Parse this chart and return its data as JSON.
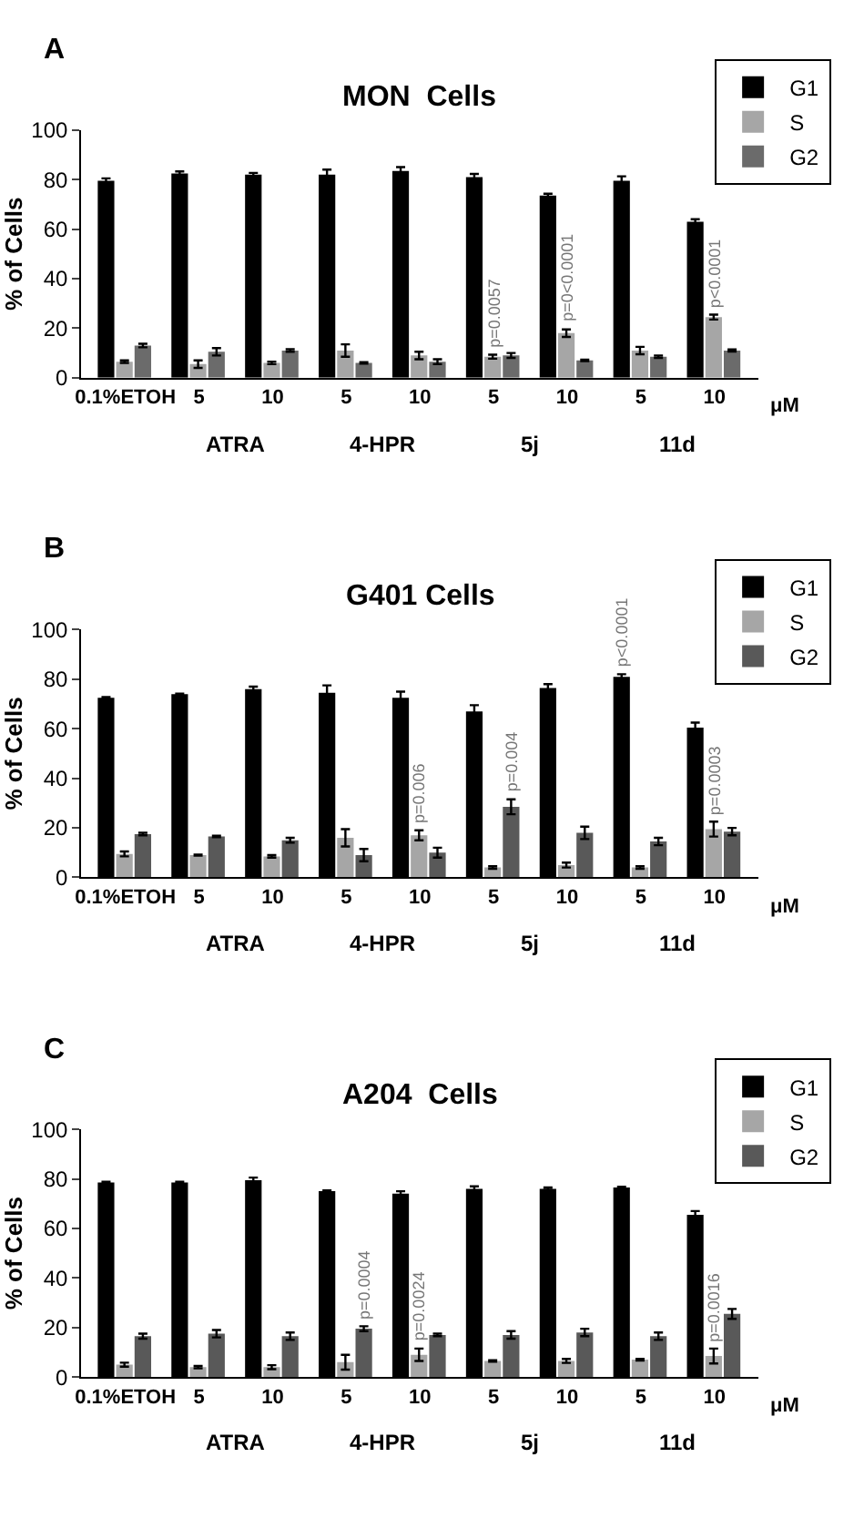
{
  "chart_data": [
    {
      "type": "bar",
      "title": "MON  Cells",
      "ylabel": "% of Cells",
      "categories": [
        "0.1%ETOH",
        "5",
        "10",
        "5",
        "10",
        "5",
        "10",
        "5",
        "10"
      ],
      "ylim": [
        0,
        100
      ],
      "yticks": [
        0,
        20,
        40,
        60,
        80,
        100
      ],
      "legend": "top right",
      "annotations": [
        "A",
        "ATRA",
        "4-HPR",
        "5j",
        "11d",
        "μM",
        "p=0.0057",
        "p=0<0.0001",
        "p<0.0001"
      ],
      "series": [
        {
          "name": "G1",
          "color": "#000000",
          "values": [
            79.5,
            82.5,
            82,
            82,
            83.5,
            81,
            73.5,
            79.5,
            63
          ],
          "errors": [
            1,
            0.8,
            0.7,
            2,
            1.5,
            1.3,
            0.8,
            1.8,
            1
          ],
          "value_labels": [
            null,
            null,
            null,
            null,
            null,
            null,
            null,
            null,
            null
          ]
        },
        {
          "name": "S",
          "color": "#a6a6a6",
          "values": [
            6.5,
            5.5,
            6,
            11,
            9,
            8.5,
            18,
            11,
            24.5
          ],
          "errors": [
            0.5,
            1.5,
            0.5,
            2.5,
            1.5,
            0.8,
            1.5,
            1.5,
            1
          ],
          "value_labels": [
            null,
            null,
            null,
            null,
            null,
            null,
            null,
            null,
            null
          ]
        },
        {
          "name": "G2",
          "color": "#6b6b6b",
          "values": [
            13,
            10.5,
            11,
            6,
            6.5,
            9,
            7,
            8.5,
            11
          ],
          "errors": [
            0.7,
            1.5,
            0.5,
            0.3,
            1,
            1,
            0.3,
            0.5,
            0.4
          ],
          "value_labels": [
            null,
            null,
            null,
            null,
            null,
            null,
            null,
            null,
            null
          ]
        }
      ]
    },
    {
      "type": "bar",
      "title": "G401 Cells",
      "ylabel": "% of Cells",
      "categories": [
        "0.1%ETOH",
        "5",
        "10",
        "5",
        "10",
        "5",
        "10",
        "5",
        "10"
      ],
      "ylim": [
        0,
        100
      ],
      "yticks": [
        0,
        20,
        40,
        60,
        80,
        100
      ],
      "legend": "top right",
      "annotations": [
        "B",
        "ATRA",
        "4-HPR",
        "5j",
        "11d",
        "μM",
        "p=0.006",
        "p=0.004",
        "p<0.0001",
        "p=0.0003"
      ],
      "series": [
        {
          "name": "G1",
          "color": "#000000",
          "values": [
            72.5,
            74,
            76,
            74.5,
            72.5,
            67,
            76.5,
            81,
            60.5
          ],
          "errors": [
            0.3,
            0.2,
            1,
            3,
            2.5,
            2.5,
            1.5,
            1,
            2
          ],
          "value_labels": [
            null,
            null,
            null,
            null,
            null,
            null,
            null,
            null,
            null
          ]
        },
        {
          "name": "S",
          "color": "#a6a6a6",
          "values": [
            9.5,
            9,
            8.5,
            16,
            17,
            4,
            5,
            4,
            19.5
          ],
          "errors": [
            1,
            0.2,
            0.5,
            3.5,
            2,
            0.5,
            1,
            0.5,
            3
          ],
          "value_labels": [
            null,
            null,
            null,
            null,
            null,
            null,
            null,
            null,
            null
          ]
        },
        {
          "name": "G2",
          "color": "#595959",
          "values": [
            17.5,
            16.5,
            15,
            9,
            10,
            28.5,
            18,
            14.5,
            18.5
          ],
          "errors": [
            0.5,
            0.3,
            1,
            2.5,
            2,
            3,
            2.5,
            1.5,
            1.5
          ],
          "value_labels": [
            null,
            null,
            null,
            null,
            null,
            null,
            null,
            null,
            null
          ]
        }
      ]
    },
    {
      "type": "bar",
      "title": "A204  Cells",
      "ylabel": "% of Cells",
      "categories": [
        "0.1%ETOH",
        "5",
        "10",
        "5",
        "10",
        "5",
        "10",
        "5",
        "10"
      ],
      "ylim": [
        0,
        100
      ],
      "yticks": [
        0,
        20,
        40,
        60,
        80,
        100
      ],
      "legend": "top right",
      "annotations": [
        "C",
        "ATRA",
        "4-HPR",
        "5j",
        "11d",
        "μM",
        "p=0.0004",
        "p=0.0024",
        "p=0.0016"
      ],
      "series": [
        {
          "name": "G1",
          "color": "#000000",
          "values": [
            78.5,
            78.5,
            79.5,
            75,
            74,
            76,
            76,
            76.5,
            65.5
          ],
          "errors": [
            0.3,
            0.3,
            1,
            0.3,
            1,
            1,
            0.5,
            0.3,
            1.5
          ],
          "value_labels": [
            null,
            null,
            null,
            null,
            null,
            null,
            null,
            null,
            null
          ]
        },
        {
          "name": "S",
          "color": "#a6a6a6",
          "values": [
            5,
            4,
            4,
            6,
            9,
            6.5,
            6.5,
            7,
            8.5
          ],
          "errors": [
            0.8,
            0.5,
            0.8,
            3,
            2.5,
            0.3,
            0.8,
            0.3,
            3
          ],
          "value_labels": [
            null,
            null,
            null,
            null,
            null,
            null,
            null,
            null,
            null
          ]
        },
        {
          "name": "G2",
          "color": "#595959",
          "values": [
            16.5,
            17.5,
            16.5,
            19.5,
            17,
            17,
            18,
            16.5,
            25.5
          ],
          "errors": [
            1,
            1.5,
            1.5,
            1,
            0.5,
            1.5,
            1.5,
            1.5,
            2
          ],
          "value_labels": [
            null,
            null,
            null,
            null,
            null,
            null,
            null,
            null,
            null
          ]
        }
      ]
    }
  ]
}
